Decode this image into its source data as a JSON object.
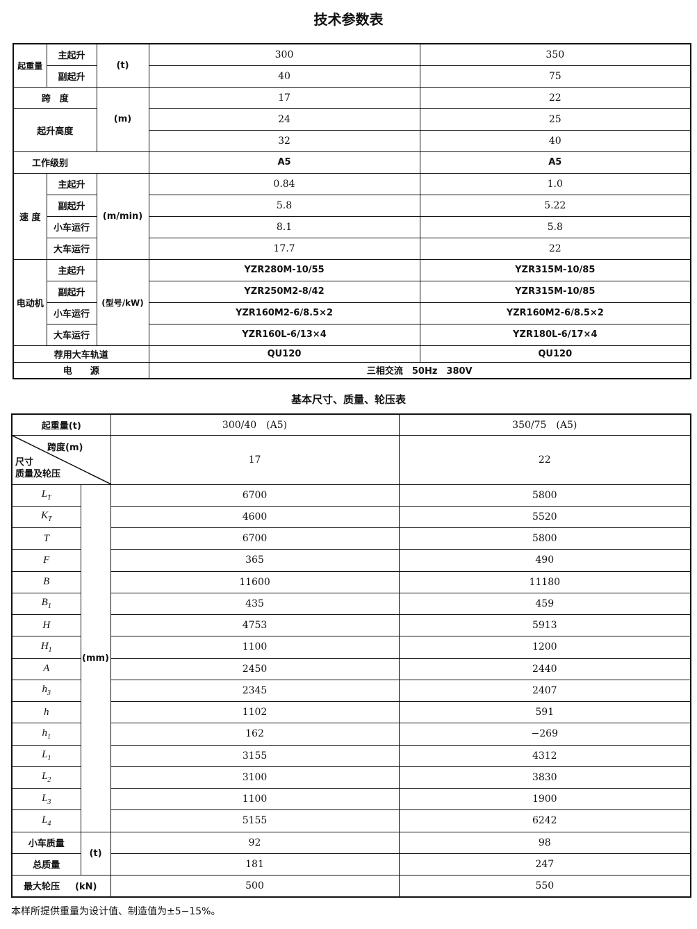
{
  "table1": {
    "title": "技术参数表",
    "lifting_capacity": "起重量",
    "main_hoist": "主起升",
    "aux_hoist": "副起升",
    "unit_t": "(t)",
    "span": "跨　度",
    "lift_height": "起升高度",
    "unit_m": "(m)",
    "work_class": "工作级别",
    "speed": "速 度",
    "trolley_travel": "小车运行",
    "crane_travel": "大车运行",
    "unit_speed": "(m/min)",
    "motor": "电动机",
    "unit_motor": "(型号/kW)",
    "rail": "荐用大车轨道",
    "power": "电　　源",
    "col_a": {
      "main": "300",
      "aux": "40",
      "span": "17",
      "h1": "24",
      "h2": "32",
      "class": "A5",
      "v_main": "0.84",
      "v_aux": "5.8",
      "v_trolley": "8.1",
      "v_crane": "17.7",
      "m_main": "YZR280M-10/55",
      "m_aux": "YZR250M2-8/42",
      "m_trolley": "YZR160M2-6/8.5×2",
      "m_crane": "YZR160L-6/13×4",
      "rail": "QU120"
    },
    "col_b": {
      "main": "350",
      "aux": "75",
      "span": "22",
      "h1": "25",
      "h2": "40",
      "class": "A5",
      "v_main": "1.0",
      "v_aux": "5.22",
      "v_trolley": "5.8",
      "v_crane": "22",
      "m_main": "YZR315M-10/85",
      "m_aux": "YZR315M-10/85",
      "m_trolley": "YZR160M2-6/8.5×2",
      "m_crane": "YZR180L-6/17×4",
      "rail": "QU120"
    },
    "power_value": "三相交流　50Hz　380V"
  },
  "table2": {
    "title": "基本尺寸、质量、轮压表",
    "capacity_label": "起重量(t)",
    "cap_a": "300/40　(A5)",
    "cap_b": "350/75　(A5)",
    "span_label": "跨度(m)",
    "dim_label": "尺寸",
    "mass_label": "质量及轮压",
    "span_a": "17",
    "span_b": "22",
    "unit_mm": "(mm)",
    "rows": [
      {
        "sym": "L",
        "sub": "T",
        "a": "6700",
        "b": "5800"
      },
      {
        "sym": "K",
        "sub": "T",
        "a": "4600",
        "b": "5520"
      },
      {
        "sym": "T",
        "sub": "",
        "a": "6700",
        "b": "5800"
      },
      {
        "sym": "F",
        "sub": "",
        "a": "365",
        "b": "490"
      },
      {
        "sym": "B",
        "sub": "",
        "a": "11600",
        "b": "11180"
      },
      {
        "sym": "B",
        "sub": "1",
        "a": "435",
        "b": "459"
      },
      {
        "sym": "H",
        "sub": "",
        "a": "4753",
        "b": "5913"
      },
      {
        "sym": "H",
        "sub": "1",
        "a": "1100",
        "b": "1200"
      },
      {
        "sym": "A",
        "sub": "",
        "a": "2450",
        "b": "2440"
      },
      {
        "sym": "h",
        "sub": "3",
        "a": "2345",
        "b": "2407"
      },
      {
        "sym": "h",
        "sub": "",
        "a": "1102",
        "b": "591"
      },
      {
        "sym": "h",
        "sub": "1",
        "a": "162",
        "b": "−269"
      },
      {
        "sym": "L",
        "sub": "1",
        "a": "3155",
        "b": "4312"
      },
      {
        "sym": "L",
        "sub": "2",
        "a": "3100",
        "b": "3830"
      },
      {
        "sym": "L",
        "sub": "3",
        "a": "1100",
        "b": "1900"
      },
      {
        "sym": "L",
        "sub": "4",
        "a": "5155",
        "b": "6242"
      }
    ],
    "trolley_mass": "小车质量",
    "total_mass": "总质量",
    "unit_t": "(t)",
    "trolley_mass_a": "92",
    "trolley_mass_b": "98",
    "total_mass_a": "181",
    "total_mass_b": "247",
    "max_wheel": "最大轮压",
    "unit_kn": "(kN)",
    "max_wheel_a": "500",
    "max_wheel_b": "550"
  },
  "note": "本样所提供重量为设计值、制造值为±5−15%。"
}
